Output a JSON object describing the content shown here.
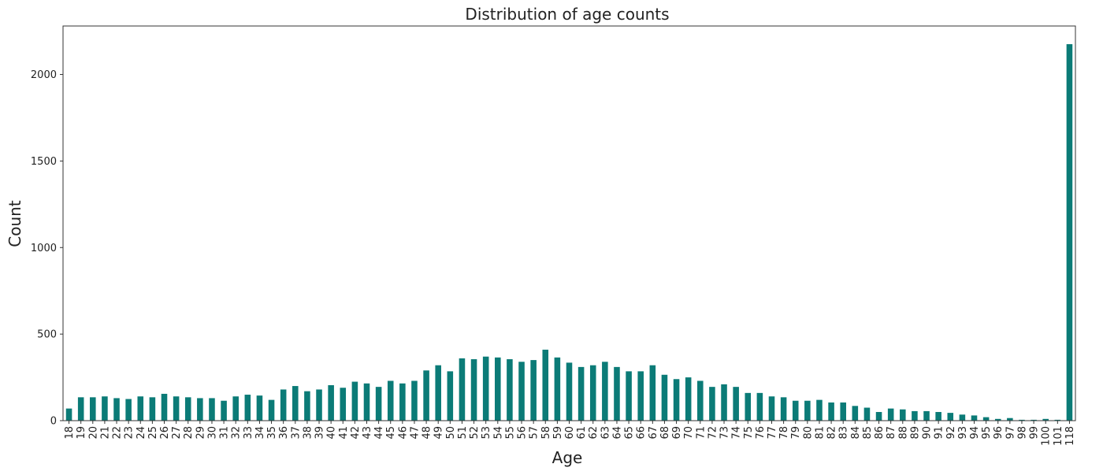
{
  "chart_data": {
    "type": "bar",
    "title": "Distribution of age counts",
    "xlabel": "Age",
    "ylabel": "Count",
    "ylim": [
      0,
      2280
    ],
    "yticks": [
      0,
      500,
      1000,
      1500,
      2000
    ],
    "grid": false,
    "legend": "none",
    "bar_color": "#0b7b77",
    "categories": [
      "18",
      "19",
      "20",
      "21",
      "22",
      "23",
      "24",
      "25",
      "26",
      "27",
      "28",
      "29",
      "30",
      "31",
      "32",
      "33",
      "34",
      "35",
      "36",
      "37",
      "38",
      "39",
      "40",
      "41",
      "42",
      "43",
      "44",
      "45",
      "46",
      "47",
      "48",
      "49",
      "50",
      "51",
      "52",
      "53",
      "54",
      "55",
      "56",
      "57",
      "58",
      "59",
      "60",
      "61",
      "62",
      "63",
      "64",
      "65",
      "66",
      "67",
      "68",
      "69",
      "70",
      "71",
      "72",
      "73",
      "74",
      "75",
      "76",
      "77",
      "78",
      "79",
      "80",
      "81",
      "82",
      "83",
      "84",
      "85",
      "86",
      "87",
      "88",
      "89",
      "90",
      "91",
      "92",
      "93",
      "94",
      "95",
      "96",
      "97",
      "98",
      "99",
      "100",
      "101",
      "118"
    ],
    "values": [
      70,
      135,
      135,
      140,
      130,
      125,
      140,
      135,
      155,
      140,
      135,
      130,
      130,
      115,
      140,
      150,
      145,
      120,
      180,
      200,
      170,
      180,
      205,
      190,
      225,
      215,
      195,
      230,
      215,
      230,
      290,
      320,
      285,
      360,
      355,
      370,
      365,
      355,
      340,
      350,
      410,
      365,
      335,
      310,
      320,
      340,
      310,
      285,
      285,
      320,
      265,
      240,
      250,
      230,
      195,
      210,
      195,
      160,
      160,
      140,
      135,
      115,
      115,
      120,
      105,
      105,
      85,
      75,
      50,
      70,
      65,
      55,
      55,
      50,
      45,
      35,
      30,
      20,
      10,
      15,
      5,
      5,
      10,
      5,
      2175
    ]
  }
}
